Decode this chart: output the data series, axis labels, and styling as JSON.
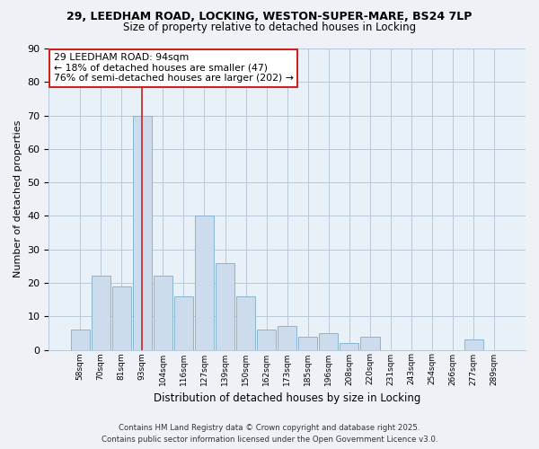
{
  "title_line1": "29, LEEDHAM ROAD, LOCKING, WESTON-SUPER-MARE, BS24 7LP",
  "title_line2": "Size of property relative to detached houses in Locking",
  "xlabel": "Distribution of detached houses by size in Locking",
  "ylabel": "Number of detached properties",
  "bar_labels": [
    "58sqm",
    "70sqm",
    "81sqm",
    "93sqm",
    "104sqm",
    "116sqm",
    "127sqm",
    "139sqm",
    "150sqm",
    "162sqm",
    "173sqm",
    "185sqm",
    "196sqm",
    "208sqm",
    "220sqm",
    "231sqm",
    "243sqm",
    "254sqm",
    "266sqm",
    "277sqm",
    "289sqm"
  ],
  "bar_values": [
    6,
    22,
    19,
    70,
    22,
    16,
    40,
    26,
    16,
    6,
    7,
    4,
    5,
    2,
    4,
    0,
    0,
    0,
    0,
    3,
    0
  ],
  "bar_color": "#ccdcec",
  "bar_edge_color": "#8ab4d0",
  "property_bar_index": 3,
  "property_line_color": "#cc2222",
  "ylim": [
    0,
    90
  ],
  "yticks": [
    0,
    10,
    20,
    30,
    40,
    50,
    60,
    70,
    80,
    90
  ],
  "annotation_box_text": "29 LEEDHAM ROAD: 94sqm\n← 18% of detached houses are smaller (47)\n76% of semi-detached houses are larger (202) →",
  "footer_line1": "Contains HM Land Registry data © Crown copyright and database right 2025.",
  "footer_line2": "Contains public sector information licensed under the Open Government Licence v3.0.",
  "bg_color": "#eef2f7",
  "plot_bg_color": "#e8f0f8",
  "grid_color": "#b8c8d8"
}
